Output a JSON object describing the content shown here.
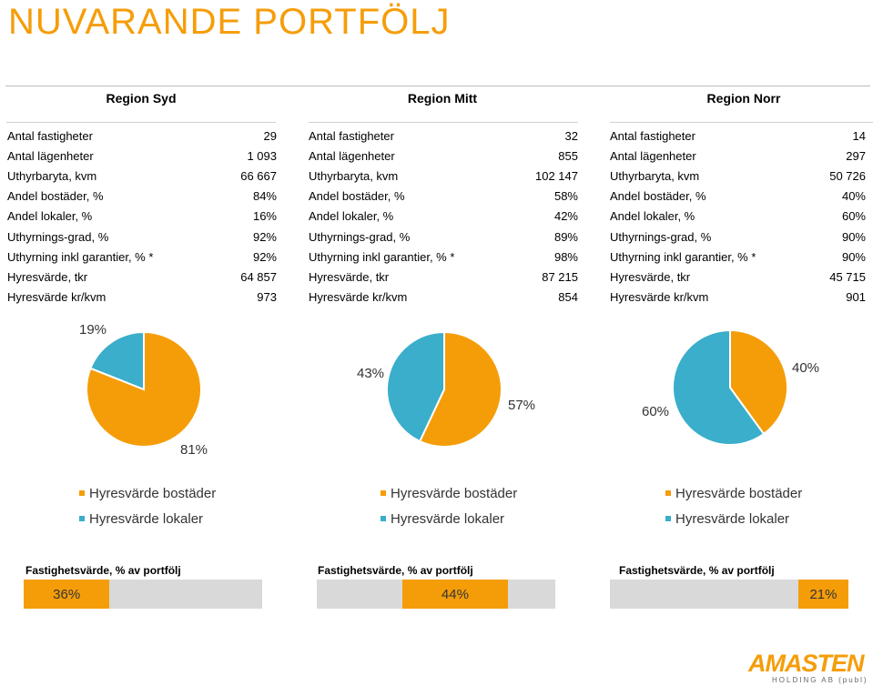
{
  "title": "NUVARANDE PORTFÖLJ",
  "colors": {
    "accent": "#f59d09",
    "lokaler": "#3aaecb",
    "bar_bg": "#d9d9d9"
  },
  "regions": [
    {
      "name": "Region Syd",
      "stats": [
        {
          "label": "Antal fastigheter",
          "value": "29"
        },
        {
          "label": "Antal lägenheter",
          "value": "1 093"
        },
        {
          "label": "Uthyrbaryta, kvm",
          "value": "66 667"
        },
        {
          "label": "Andel bostäder, %",
          "value": "84%"
        },
        {
          "label": "Andel lokaler, %",
          "value": "16%"
        },
        {
          "label": "Uthyrnings-grad, %",
          "value": "92%"
        },
        {
          "label": "Uthyrning inkl garantier, % *",
          "value": "92%"
        },
        {
          "label": "Hyresvärde, tkr",
          "value": "64 857"
        },
        {
          "label": "Hyresvärde kr/kvm",
          "value": "973"
        }
      ],
      "pie": {
        "bostader_label": "81%",
        "lokaler_label": "19%",
        "bostader": 81,
        "lokaler": 19
      },
      "legend": [
        "Hyresvärde bostäder",
        "Hyresvärde lokaler"
      ],
      "fastighetsvarde_title": "Fastighetsvärde,   % av portfölj",
      "fastighetsvarde_label": "36%",
      "fastighetsvarde": 36
    },
    {
      "name": "Region Mitt",
      "stats": [
        {
          "label": "Antal fastigheter",
          "value": "32"
        },
        {
          "label": "Antal lägenheter",
          "value": "855"
        },
        {
          "label": "Uthyrbaryta, kvm",
          "value": "102 147"
        },
        {
          "label": "Andel bostäder, %",
          "value": "58%"
        },
        {
          "label": "Andel lokaler, %",
          "value": "42%"
        },
        {
          "label": "Uthyrnings-grad, %",
          "value": "89%"
        },
        {
          "label": "Uthyrning inkl garantier, % *",
          "value": "98%"
        },
        {
          "label": "Hyresvärde, tkr",
          "value": "87 215"
        },
        {
          "label": "Hyresvärde kr/kvm",
          "value": "854"
        }
      ],
      "pie": {
        "bostader_label": "57%",
        "lokaler_label": "43%",
        "bostader": 57,
        "lokaler": 43
      },
      "legend": [
        "Hyresvärde bostäder",
        "Hyresvärde lokaler"
      ],
      "fastighetsvarde_title": "Fastighetsvärde,   % av portfölj",
      "fastighetsvarde_label": "44%",
      "fastighetsvarde": 44
    },
    {
      "name": "Region Norr",
      "stats": [
        {
          "label": "Antal fastigheter",
          "value": "14"
        },
        {
          "label": "Antal lägenheter",
          "value": "297"
        },
        {
          "label": "Uthyrbaryta, kvm",
          "value": "50 726"
        },
        {
          "label": "Andel bostäder, %",
          "value": "40%"
        },
        {
          "label": "Andel lokaler, %",
          "value": "60%"
        },
        {
          "label": "Uthyrnings-grad, %",
          "value": "90%"
        },
        {
          "label": "Uthyrning inkl garantier, % *",
          "value": "90%"
        },
        {
          "label": "Hyresvärde, tkr",
          "value": "45 715"
        },
        {
          "label": "Hyresvärde kr/kvm",
          "value": "901"
        }
      ],
      "pie": {
        "bostader_label": "40%",
        "lokaler_label": "60%",
        "bostader": 40,
        "lokaler": 60
      },
      "legend": [
        "Hyresvärde bostäder",
        "Hyresvärde lokaler"
      ],
      "fastighetsvarde_title": "Fastighetsvärde,   % av portfölj",
      "fastighetsvarde_label": "21%",
      "fastighetsvarde": 21
    }
  ],
  "logo": {
    "brand": "AMASTEN",
    "sub": "HOLDING AB (publ)"
  }
}
